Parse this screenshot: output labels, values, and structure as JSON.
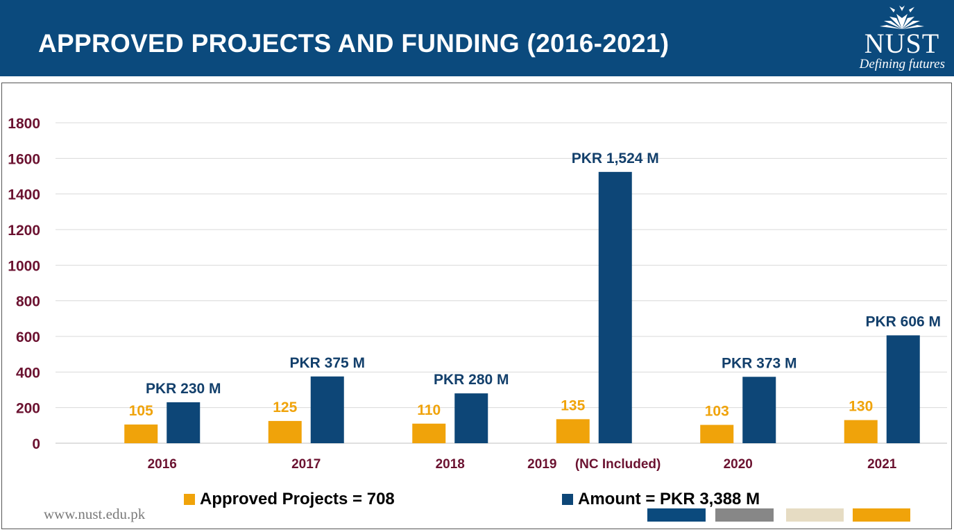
{
  "header": {
    "title": "APPROVED PROJECTS AND FUNDING (2016-2021)",
    "logo_name": "NUST",
    "logo_tagline": "Defining futures"
  },
  "footer": {
    "url": "www.nust.edu.pk",
    "stripe_colors": [
      "#0b4a7d",
      "#878787",
      "#e6dcc3",
      "#f0a30a"
    ]
  },
  "colors": {
    "header_bg": "#0b4a7d",
    "projects": "#f0a30a",
    "amount": "#0d4677",
    "tick_text": "#6b1230"
  },
  "chart_data": {
    "type": "bar",
    "categories": [
      "2016",
      "2017",
      "2018",
      "2019     (NC Included)",
      "2020",
      "2021"
    ],
    "ylim": [
      0,
      1800
    ],
    "yticks": [
      0,
      200,
      400,
      600,
      800,
      1000,
      1200,
      1400,
      1600,
      1800
    ],
    "grid": true,
    "legend_position": "bottom",
    "series": [
      {
        "name": "Approved Projects = 708",
        "color": "#f0a30a",
        "values": [
          105,
          125,
          110,
          135,
          103,
          130
        ],
        "labels": [
          "105",
          "125",
          "110",
          "135",
          "103",
          "130"
        ]
      },
      {
        "name": "Amount = PKR 3,388 M",
        "color": "#0d4677",
        "values": [
          230,
          375,
          280,
          1524,
          373,
          606
        ],
        "labels": [
          "PKR 230 M",
          "PKR 375 M",
          "PKR 280 M",
          "PKR 1,524 M",
          "PKR 373 M",
          "PKR 606 M"
        ]
      }
    ]
  }
}
